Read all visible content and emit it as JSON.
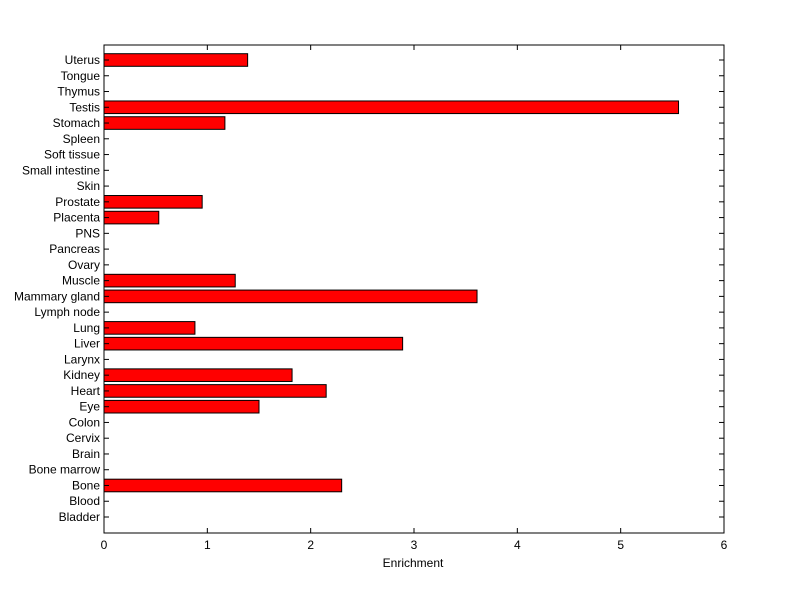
{
  "chart_data": {
    "type": "bar",
    "orientation": "horizontal",
    "title": "",
    "xlabel": "Enrichment",
    "ylabel": "",
    "xlim": [
      0,
      6
    ],
    "x_ticks": [
      0,
      1,
      2,
      3,
      4,
      5,
      6
    ],
    "grid": false,
    "legend": "none",
    "bar_color": "#ff0000",
    "bar_edge_color": "#000000",
    "categories": [
      "Bladder",
      "Blood",
      "Bone",
      "Bone marrow",
      "Brain",
      "Cervix",
      "Colon",
      "Eye",
      "Heart",
      "Kidney",
      "Larynx",
      "Liver",
      "Lung",
      "Lymph node",
      "Mammary gland",
      "Muscle",
      "Ovary",
      "Pancreas",
      "PNS",
      "Placenta",
      "Prostate",
      "Skin",
      "Small intestine",
      "Soft tissue",
      "Spleen",
      "Stomach",
      "Testis",
      "Thymus",
      "Tongue",
      "Uterus"
    ],
    "values": [
      0,
      0,
      2.3,
      0,
      0,
      0,
      0,
      1.5,
      2.15,
      1.82,
      0,
      2.89,
      0.88,
      0,
      3.61,
      1.27,
      0,
      0,
      0,
      0.53,
      0.95,
      0,
      0,
      0,
      0,
      1.17,
      5.56,
      0,
      0,
      1.39
    ]
  }
}
